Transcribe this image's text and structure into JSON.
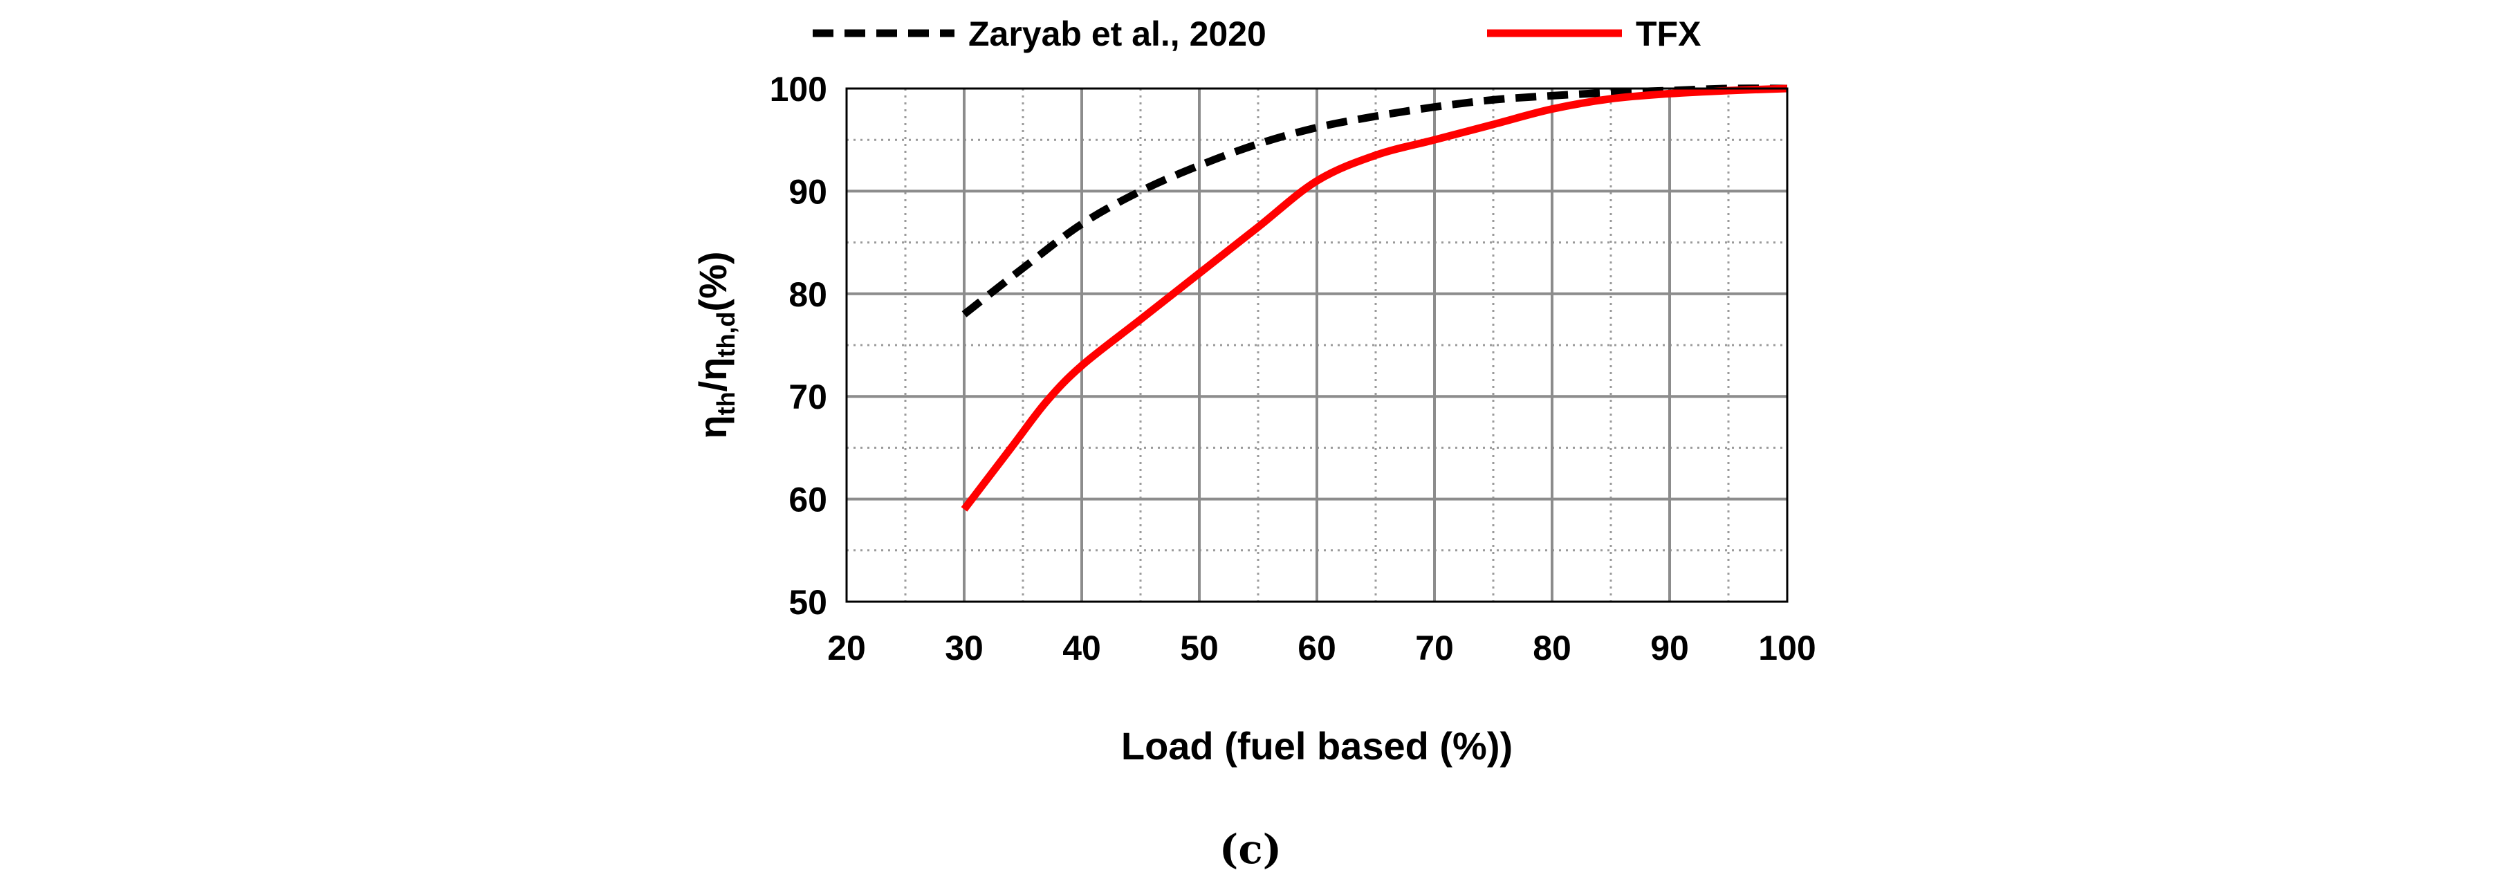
{
  "chart_data": {
    "type": "line",
    "title": "",
    "xlabel": "Load (fuel based (%))",
    "ylabel_parts": {
      "a_base": "η",
      "a_sub": "th",
      "slash": "/",
      "b_base": "η",
      "b_sub": "th,d",
      "unit": "(%)"
    },
    "xlim": [
      20,
      100
    ],
    "ylim": [
      50,
      100
    ],
    "x_major_ticks": [
      20,
      30,
      40,
      50,
      60,
      70,
      80,
      90,
      100
    ],
    "y_major_ticks": [
      50,
      60,
      70,
      80,
      90,
      100
    ],
    "x_tick_labels": [
      "20",
      "30",
      "40",
      "50",
      "60",
      "70",
      "80",
      "90",
      "100"
    ],
    "y_tick_labels": [
      "50",
      "60",
      "70",
      "80",
      "90",
      "100"
    ],
    "grid": "major solid, minor dotted",
    "legend_position": "top",
    "series": [
      {
        "name": "Zaryab et al., 2020",
        "style": "dashed",
        "color": "#000000",
        "x": [
          30,
          35,
          40,
          45,
          50,
          55,
          60,
          65,
          70,
          75,
          80,
          85,
          90,
          95,
          100
        ],
        "y": [
          78,
          82.5,
          86.8,
          90,
          92.5,
          94.6,
          96.2,
          97.3,
          98.2,
          98.9,
          99.3,
          99.6,
          99.8,
          100,
          100
        ]
      },
      {
        "name": "TFX",
        "style": "solid",
        "color": "#ff0000",
        "x": [
          30,
          34,
          37,
          40,
          45,
          50,
          55,
          60,
          65,
          70,
          75,
          80,
          85,
          90,
          95,
          100
        ],
        "y": [
          59,
          65,
          69.5,
          73,
          77.5,
          82,
          86.5,
          91,
          93.5,
          95,
          96.5,
          98,
          99,
          99.5,
          99.8,
          100
        ]
      }
    ]
  },
  "caption": "(c)"
}
